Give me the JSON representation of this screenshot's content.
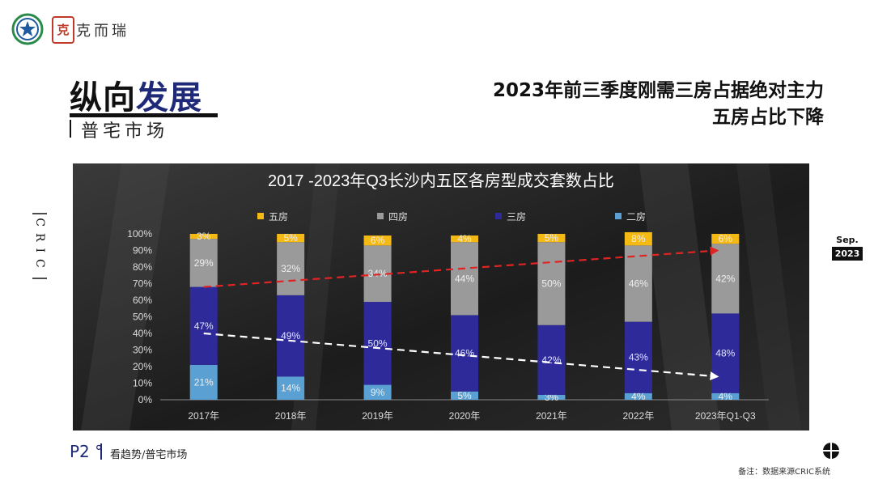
{
  "header": {
    "logo_seal": "克",
    "logo_text": "克而瑞",
    "section_title_a": "纵向",
    "section_title_b": "发展",
    "section_subtitle": "普宅市场",
    "headline_line1": "2023年前三季度刚需三房占据绝对主力",
    "headline_line2": "五房占比下降"
  },
  "side": {
    "vertical_label": "CRIC",
    "date_month": "Sep.",
    "date_year": "2023"
  },
  "footer": {
    "page_number": "P2 °",
    "page_label": "看趋势/普宅市场",
    "note": "备注：数据来源CRIC系统"
  },
  "colors": {
    "five_room": "#f5b914",
    "four_room": "#9a9a9a",
    "three_room": "#2e2a9a",
    "two_room": "#5aa0d2",
    "trend_up": "#e02424",
    "trend_down": "#ffffff"
  },
  "chart_data": {
    "type": "bar",
    "stacked": true,
    "title": "2017 -2023年Q3长沙内五区各房型成交套数占比",
    "legend_position": "top",
    "ylim": [
      0,
      100
    ],
    "y_ticks": [
      "0%",
      "10%",
      "20%",
      "30%",
      "40%",
      "50%",
      "60%",
      "70%",
      "80%",
      "90%",
      "100%"
    ],
    "categories": [
      "2017年",
      "2018年",
      "2019年",
      "2020年",
      "2021年",
      "2022年",
      "2023年Q1-Q3"
    ],
    "series": [
      {
        "name": "二房",
        "color_key": "two_room",
        "values": [
          21,
          14,
          9,
          5,
          3,
          4,
          4
        ]
      },
      {
        "name": "三房",
        "color_key": "three_room",
        "values": [
          47,
          49,
          50,
          46,
          42,
          43,
          48
        ]
      },
      {
        "name": "四房",
        "color_key": "four_room",
        "values": [
          29,
          32,
          34,
          44,
          50,
          46,
          42
        ]
      },
      {
        "name": "五房",
        "color_key": "five_room",
        "values": [
          3,
          5,
          6,
          4,
          5,
          8,
          6
        ]
      }
    ],
    "legend_order": [
      "五房",
      "四房",
      "三房",
      "二房"
    ],
    "data_labels": [
      [
        "21%",
        "14%",
        "9%",
        "5%",
        "3%",
        "4%",
        "4%"
      ],
      [
        "47%",
        "49%",
        "50%",
        "46%",
        "42%",
        "43%",
        "48%"
      ],
      [
        "29%",
        "32%",
        "34%",
        "44%",
        "50%",
        "46%",
        "42%"
      ],
      [
        "3%",
        "5%",
        "6%",
        "4%",
        "5%",
        "8%",
        "6%"
      ]
    ],
    "annotations": [
      {
        "type": "trend-arrow",
        "color_key": "trend_up",
        "from": 68,
        "to": 90
      },
      {
        "type": "trend-arrow",
        "color_key": "trend_down",
        "from": 40,
        "to": 14
      }
    ]
  }
}
